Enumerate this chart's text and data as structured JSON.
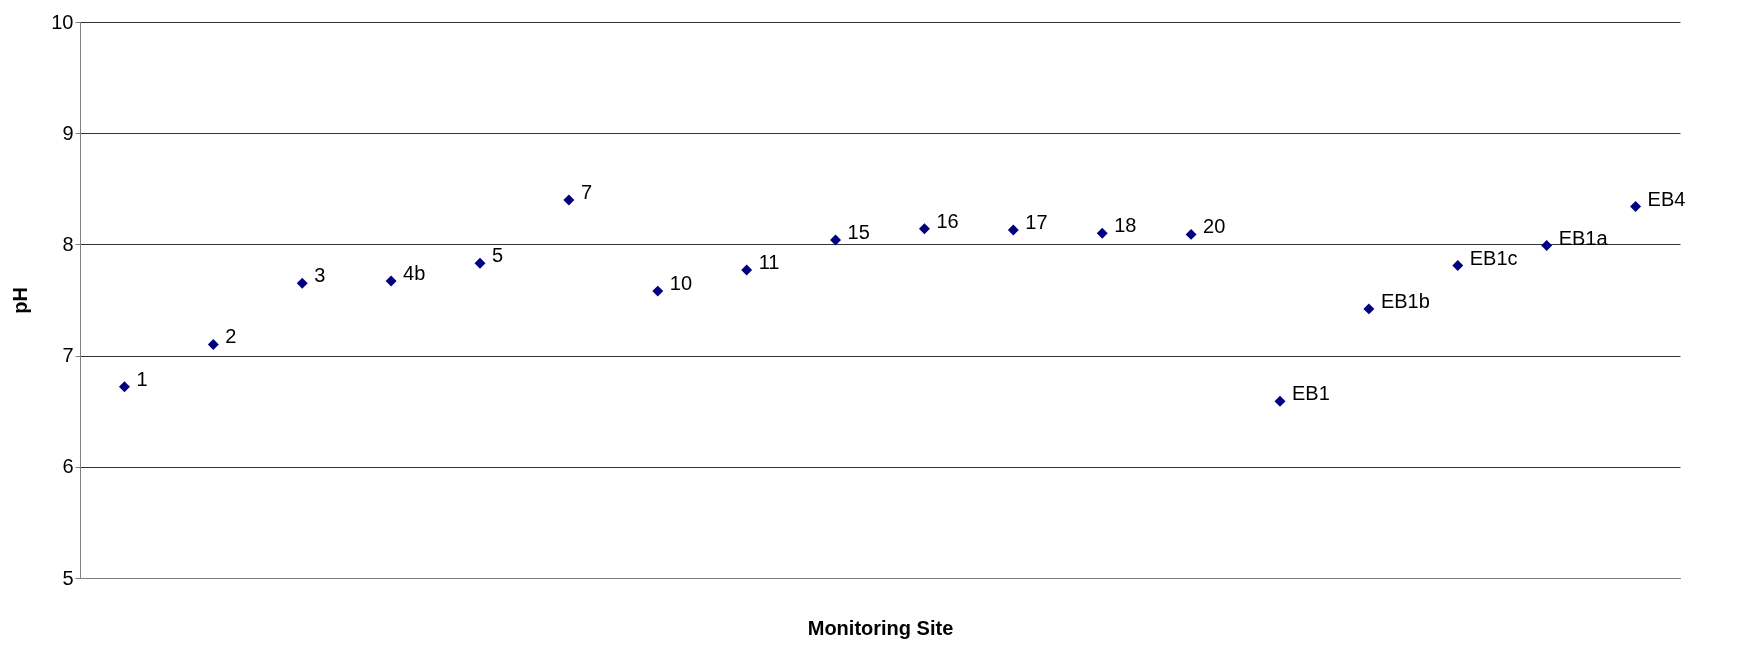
{
  "chart_data": {
    "type": "scatter",
    "xlabel": "Monitoring Site",
    "ylabel": "pH",
    "categories": [
      null,
      null,
      null,
      null,
      null,
      null,
      null,
      null,
      null,
      null,
      null,
      null,
      null,
      null,
      null,
      null,
      null,
      null
    ],
    "series": [
      {
        "name": "1",
        "color": "#000080",
        "values": [
          6.72,
          null,
          null,
          null,
          null,
          null,
          null,
          null,
          null,
          null,
          null,
          null,
          null,
          null,
          null,
          null,
          null,
          null
        ]
      },
      {
        "name": "2",
        "color": "#000080",
        "values": [
          null,
          7.1,
          null,
          null,
          null,
          null,
          null,
          null,
          null,
          null,
          null,
          null,
          null,
          null,
          null,
          null,
          null,
          null
        ]
      },
      {
        "name": "3",
        "color": "#000080",
        "values": [
          null,
          null,
          7.65,
          null,
          null,
          null,
          null,
          null,
          null,
          null,
          null,
          null,
          null,
          null,
          null,
          null,
          null,
          null
        ]
      },
      {
        "name": "4b",
        "color": "#000080",
        "values": [
          null,
          null,
          null,
          7.67,
          null,
          null,
          null,
          null,
          null,
          null,
          null,
          null,
          null,
          null,
          null,
          null,
          null,
          null
        ]
      },
      {
        "name": "5",
        "color": "#000080",
        "values": [
          null,
          null,
          null,
          null,
          7.83,
          null,
          null,
          null,
          null,
          null,
          null,
          null,
          null,
          null,
          null,
          null,
          null,
          null
        ]
      },
      {
        "name": "7",
        "color": "#000080",
        "values": [
          null,
          null,
          null,
          null,
          null,
          8.4,
          null,
          null,
          null,
          null,
          null,
          null,
          null,
          null,
          null,
          null,
          null,
          null
        ]
      },
      {
        "name": "10",
        "color": "#000080",
        "values": [
          null,
          null,
          null,
          null,
          null,
          null,
          7.58,
          null,
          null,
          null,
          null,
          null,
          null,
          null,
          null,
          null,
          null,
          null
        ]
      },
      {
        "name": "11",
        "color": "#000080",
        "values": [
          null,
          null,
          null,
          null,
          null,
          null,
          null,
          7.77,
          null,
          null,
          null,
          null,
          null,
          null,
          null,
          null,
          null,
          null
        ]
      },
      {
        "name": "15",
        "color": "#000080",
        "values": [
          null,
          null,
          null,
          null,
          null,
          null,
          null,
          null,
          8.04,
          null,
          null,
          null,
          null,
          null,
          null,
          null,
          null,
          null
        ]
      },
      {
        "name": "16",
        "color": "#000080",
        "values": [
          null,
          null,
          null,
          null,
          null,
          null,
          null,
          null,
          null,
          8.14,
          null,
          null,
          null,
          null,
          null,
          null,
          null,
          null
        ]
      },
      {
        "name": "17",
        "color": "#000080",
        "values": [
          null,
          null,
          null,
          null,
          null,
          null,
          null,
          null,
          null,
          null,
          8.13,
          null,
          null,
          null,
          null,
          null,
          null,
          null
        ]
      },
      {
        "name": "18",
        "color": "#000080",
        "values": [
          null,
          null,
          null,
          null,
          null,
          null,
          null,
          null,
          null,
          null,
          null,
          8.1,
          null,
          null,
          null,
          null,
          null,
          null
        ]
      },
      {
        "name": "20",
        "color": "#000080",
        "values": [
          null,
          null,
          null,
          null,
          null,
          null,
          null,
          null,
          null,
          null,
          null,
          null,
          8.09,
          null,
          null,
          null,
          null,
          null
        ]
      },
      {
        "name": "EB1",
        "color": "#000080",
        "values": [
          null,
          null,
          null,
          null,
          null,
          null,
          null,
          null,
          null,
          null,
          null,
          null,
          null,
          6.59,
          null,
          null,
          null,
          null
        ]
      },
      {
        "name": "EB1b",
        "color": "#000080",
        "values": [
          null,
          null,
          null,
          null,
          null,
          null,
          null,
          null,
          null,
          null,
          null,
          null,
          null,
          null,
          7.42,
          null,
          null,
          null
        ]
      },
      {
        "name": "EB1c",
        "color": "#000080",
        "values": [
          null,
          null,
          null,
          null,
          null,
          null,
          null,
          null,
          null,
          null,
          null,
          null,
          null,
          null,
          null,
          7.81,
          null,
          null
        ]
      },
      {
        "name": "EB1a",
        "color": "#000080",
        "values": [
          null,
          null,
          null,
          null,
          null,
          null,
          null,
          null,
          null,
          null,
          null,
          null,
          null,
          null,
          null,
          null,
          7.99,
          null
        ]
      },
      {
        "name": "EB4",
        "color": "#000080",
        "values": [
          null,
          null,
          null,
          null,
          null,
          null,
          null,
          null,
          null,
          null,
          null,
          null,
          null,
          null,
          null,
          null,
          null,
          8.34
        ]
      }
    ],
    "ylim": [
      5,
      10
    ],
    "yticks": [
      5,
      6,
      7,
      8,
      9,
      10
    ],
    "grid": "y",
    "marker": "diamond",
    "tick_labels": "y"
  }
}
